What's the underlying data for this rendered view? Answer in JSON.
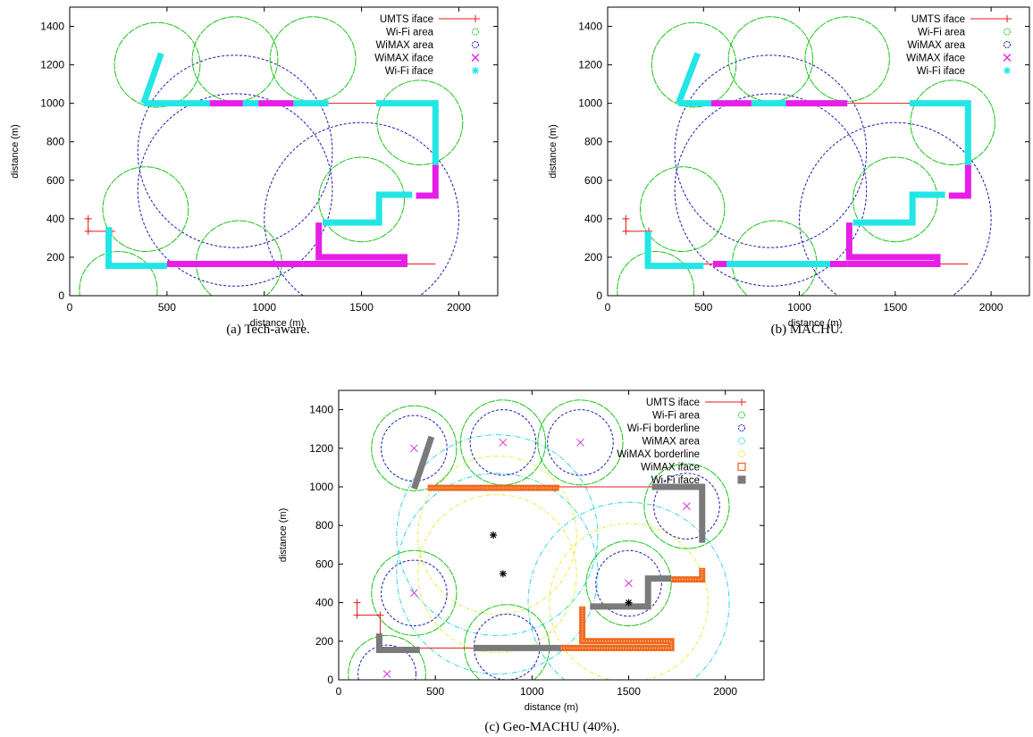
{
  "colors": {
    "umts": "#e8191c",
    "wifi_area": "#19c419",
    "wimax_area_ab": "#1a1ab0",
    "wimax_iface_ab": "#e61ee6",
    "wifi_iface_ab": "#22e6e6",
    "wifi_borderline_c": "#1a1ab0",
    "wimax_area_c": "#33d6e0",
    "wimax_border_c": "#e8e833",
    "wimax_iface_c": "#f06a1e",
    "wifi_iface_c": "#7a7a7a",
    "bs_marker_wifi": "#d633d6",
    "bs_marker_wimax": "#000000"
  },
  "chart_data": [
    {
      "type": "scatter",
      "caption": "(a) Tech-aware.",
      "xlabel": "distance (m)",
      "ylabel": "distance (m)",
      "xlim": [
        0,
        2200
      ],
      "ylim": [
        0,
        1500
      ],
      "xticks": [
        0,
        500,
        1000,
        1500,
        2000
      ],
      "yticks": [
        0,
        200,
        400,
        600,
        800,
        1000,
        1200,
        1400
      ],
      "grid": false,
      "legend_position": "top-right",
      "legend": [
        "UMTS iface",
        "Wi-Fi area",
        "WiMAX area",
        "WiMAX iface",
        "Wi-Fi iface"
      ],
      "wifi_areas": [
        [
          450,
          1200,
          220
        ],
        [
          850,
          1230,
          220
        ],
        [
          1250,
          1230,
          220
        ],
        [
          1800,
          900,
          220
        ],
        [
          1500,
          500,
          220
        ],
        [
          250,
          30,
          200
        ],
        [
          390,
          450,
          220
        ],
        [
          870,
          170,
          220
        ]
      ],
      "wimax_areas": [
        [
          850,
          750,
          500
        ],
        [
          850,
          550,
          500
        ],
        [
          1500,
          400,
          500
        ]
      ],
      "umts_segments": [
        [
          [
            95,
            400
          ],
          [
            95,
            335
          ],
          [
            215,
            335
          ]
        ],
        [
          [
            500,
            165
          ],
          [
            1880,
            165
          ]
        ],
        [
          [
            1250,
            1000
          ],
          [
            1880,
            1000
          ]
        ]
      ],
      "wimax_iface_segments": [
        [
          [
            500,
            165
          ],
          [
            1200,
            165
          ]
        ],
        [
          [
            1200,
            165
          ],
          [
            1720,
            165
          ],
          [
            1720,
            200
          ],
          [
            1280,
            200
          ],
          [
            1280,
            380
          ]
        ],
        [
          [
            1780,
            520
          ],
          [
            1880,
            520
          ],
          [
            1880,
            680
          ]
        ],
        [
          [
            720,
            1000
          ],
          [
            890,
            1000
          ]
        ],
        [
          [
            970,
            1000
          ],
          [
            1150,
            1000
          ]
        ]
      ],
      "wifi_iface_segments": [
        [
          [
            185,
            340
          ],
          [
            200,
            340
          ],
          [
            200,
            155
          ],
          [
            500,
            155
          ]
        ],
        [
          [
            550,
            165
          ],
          [
            1150,
            165
          ]
        ],
        [
          [
            1300,
            380
          ],
          [
            1590,
            380
          ],
          [
            1590,
            525
          ],
          [
            1760,
            525
          ]
        ],
        [
          [
            1575,
            1000
          ],
          [
            1880,
            1000
          ],
          [
            1880,
            680
          ]
        ],
        [
          [
            380,
            1000
          ],
          [
            720,
            1000
          ]
        ],
        [
          [
            890,
            1000
          ],
          [
            970,
            1000
          ]
        ],
        [
          [
            1150,
            1000
          ],
          [
            1330,
            1000
          ]
        ],
        [
          [
            380,
            1000
          ],
          [
            470,
            1260
          ]
        ]
      ]
    },
    {
      "type": "scatter",
      "caption": "(b) MACHU.",
      "xlabel": "distance (m)",
      "ylabel": "distance (m)",
      "xlim": [
        0,
        2200
      ],
      "ylim": [
        0,
        1500
      ],
      "xticks": [
        0,
        500,
        1000,
        1500,
        2000
      ],
      "yticks": [
        0,
        200,
        400,
        600,
        800,
        1000,
        1200,
        1400
      ],
      "grid": false,
      "legend_position": "top-right",
      "legend": [
        "UMTS iface",
        "Wi-Fi area",
        "WiMAX area",
        "WiMAX iface",
        "Wi-Fi iface"
      ],
      "wifi_areas": [
        [
          450,
          1200,
          220
        ],
        [
          850,
          1230,
          220
        ],
        [
          1250,
          1230,
          220
        ],
        [
          1800,
          900,
          220
        ],
        [
          1500,
          500,
          220
        ],
        [
          250,
          30,
          200
        ],
        [
          390,
          450,
          220
        ],
        [
          870,
          170,
          220
        ]
      ],
      "wimax_areas": [
        [
          850,
          750,
          500
        ],
        [
          850,
          550,
          500
        ],
        [
          1500,
          400,
          500
        ]
      ],
      "umts_segments": [
        [
          [
            95,
            400
          ],
          [
            95,
            335
          ],
          [
            215,
            335
          ]
        ],
        [
          [
            500,
            165
          ],
          [
            1880,
            165
          ]
        ],
        [
          [
            1250,
            1000
          ],
          [
            1880,
            1000
          ]
        ]
      ],
      "wimax_iface_segments": [
        [
          [
            550,
            165
          ],
          [
            620,
            165
          ]
        ],
        [
          [
            1160,
            165
          ],
          [
            1250,
            165
          ]
        ],
        [
          [
            1250,
            165
          ],
          [
            1720,
            165
          ],
          [
            1720,
            200
          ],
          [
            1260,
            200
          ],
          [
            1260,
            380
          ]
        ],
        [
          [
            1780,
            520
          ],
          [
            1880,
            520
          ],
          [
            1880,
            680
          ]
        ],
        [
          [
            540,
            1000
          ],
          [
            750,
            1000
          ]
        ],
        [
          [
            930,
            1000
          ],
          [
            1250,
            1000
          ]
        ]
      ],
      "wifi_iface_segments": [
        [
          [
            210,
            335
          ],
          [
            210,
            155
          ],
          [
            500,
            155
          ]
        ],
        [
          [
            620,
            165
          ],
          [
            1160,
            165
          ]
        ],
        [
          [
            1280,
            380
          ],
          [
            1590,
            380
          ],
          [
            1590,
            525
          ],
          [
            1760,
            525
          ]
        ],
        [
          [
            1575,
            1000
          ],
          [
            1880,
            1000
          ],
          [
            1880,
            680
          ]
        ],
        [
          [
            370,
            1000
          ],
          [
            540,
            1000
          ]
        ],
        [
          [
            750,
            1000
          ],
          [
            930,
            1000
          ]
        ],
        [
          [
            370,
            1000
          ],
          [
            470,
            1260
          ]
        ]
      ]
    },
    {
      "type": "scatter",
      "caption": "(c) Geo-MACHU (40%).",
      "xlabel": "distance (m)",
      "ylabel": "distance (m)",
      "xlim": [
        0,
        2200
      ],
      "ylim": [
        0,
        1500
      ],
      "xticks": [
        0,
        500,
        1000,
        1500,
        2000
      ],
      "yticks": [
        0,
        200,
        400,
        600,
        800,
        1000,
        1200,
        1400
      ],
      "grid": false,
      "legend_position": "top-right",
      "legend": [
        "UMTS iface",
        "Wi-Fi area",
        "Wi-Fi borderline",
        "WiMAX area",
        "WiMAX borderline",
        "WiMAX iface",
        "Wi-Fi iface"
      ],
      "wifi_areas": [
        [
          390,
          1200,
          220
        ],
        [
          850,
          1230,
          220
        ],
        [
          1250,
          1230,
          220
        ],
        [
          1800,
          900,
          220
        ],
        [
          1500,
          500,
          220
        ],
        [
          250,
          30,
          200
        ],
        [
          390,
          450,
          220
        ],
        [
          870,
          170,
          220
        ]
      ],
      "wifi_borderlines": [
        [
          390,
          1200,
          170
        ],
        [
          850,
          1230,
          170
        ],
        [
          1250,
          1230,
          170
        ],
        [
          1800,
          900,
          170
        ],
        [
          1500,
          500,
          170
        ],
        [
          250,
          30,
          150
        ],
        [
          390,
          450,
          170
        ],
        [
          870,
          170,
          170
        ]
      ],
      "wimax_areas": [
        [
          820,
          750,
          520
        ],
        [
          820,
          550,
          520
        ],
        [
          1500,
          400,
          520
        ]
      ],
      "wimax_borderlines": [
        [
          820,
          750,
          410
        ],
        [
          820,
          550,
          410
        ],
        [
          1500,
          400,
          410
        ]
      ],
      "wifi_markers": [
        [
          390,
          1200
        ],
        [
          850,
          1230
        ],
        [
          1250,
          1230
        ],
        [
          1800,
          900
        ],
        [
          1500,
          500
        ],
        [
          390,
          450
        ],
        [
          250,
          30
        ]
      ],
      "wimax_markers": [
        [
          800,
          750
        ],
        [
          850,
          550
        ],
        [
          1500,
          400
        ]
      ],
      "umts_segments": [
        [
          [
            95,
            400
          ],
          [
            95,
            335
          ],
          [
            215,
            335
          ]
        ],
        [
          [
            215,
            335
          ],
          [
            215,
            165
          ],
          [
            1200,
            165
          ]
        ],
        [
          [
            1120,
            1000
          ],
          [
            1880,
            1000
          ]
        ]
      ],
      "wimax_iface_segments": [
        [
          [
            1150,
            165
          ],
          [
            1720,
            165
          ],
          [
            1720,
            200
          ],
          [
            1260,
            200
          ],
          [
            1260,
            380
          ]
        ],
        [
          [
            1720,
            520
          ],
          [
            1880,
            520
          ],
          [
            1880,
            580
          ]
        ],
        [
          [
            460,
            995
          ],
          [
            1140,
            995
          ]
        ]
      ],
      "wifi_iface_segments": [
        [
          [
            210,
            240
          ],
          [
            210,
            155
          ],
          [
            420,
            155
          ]
        ],
        [
          [
            700,
            165
          ],
          [
            1150,
            165
          ]
        ],
        [
          [
            1300,
            380
          ],
          [
            1600,
            380
          ],
          [
            1600,
            525
          ],
          [
            1720,
            525
          ]
        ],
        [
          [
            1620,
            1000
          ],
          [
            1880,
            1000
          ],
          [
            1880,
            710
          ]
        ],
        [
          [
            390,
            990
          ],
          [
            480,
            1260
          ]
        ]
      ]
    }
  ]
}
